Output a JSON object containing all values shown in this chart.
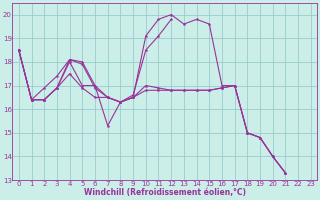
{
  "title": "",
  "xlabel": "Windchill (Refroidissement éolien,°C)",
  "ylabel": "",
  "bg_color": "#cceee8",
  "line_color": "#993399",
  "grid_color": "#99cccc",
  "xlim": [
    -0.5,
    23.5
  ],
  "ylim": [
    13,
    20.5
  ],
  "yticks": [
    13,
    14,
    15,
    16,
    17,
    18,
    19,
    20
  ],
  "xticks": [
    0,
    1,
    2,
    3,
    4,
    5,
    6,
    7,
    8,
    9,
    10,
    11,
    12,
    13,
    14,
    15,
    16,
    17,
    18,
    19,
    20,
    21,
    22,
    23
  ],
  "series": [
    [
      18.5,
      16.4,
      16.4,
      16.9,
      18.1,
      18.0,
      17.0,
      15.3,
      16.3,
      16.5,
      19.1,
      19.8,
      20.0,
      19.6,
      19.8,
      19.6,
      17.0,
      17.0,
      15.0,
      14.8,
      14.0,
      13.3,
      null,
      null
    ],
    [
      18.5,
      16.4,
      16.9,
      17.4,
      18.1,
      17.9,
      16.9,
      16.5,
      16.3,
      16.6,
      18.5,
      19.1,
      19.8,
      null,
      null,
      null,
      null,
      null,
      null,
      null,
      null,
      null,
      null,
      null
    ],
    [
      18.5,
      16.4,
      16.4,
      16.9,
      17.5,
      16.9,
      16.5,
      16.5,
      16.3,
      16.5,
      17.0,
      16.9,
      16.8,
      16.8,
      16.8,
      16.8,
      16.9,
      17.0,
      15.0,
      14.8,
      14.0,
      13.3,
      null,
      null
    ],
    [
      18.5,
      16.4,
      16.4,
      16.9,
      18.0,
      17.0,
      17.0,
      16.5,
      16.3,
      16.5,
      16.8,
      16.8,
      16.8,
      16.8,
      16.8,
      16.8,
      16.9,
      17.0,
      15.0,
      14.8,
      14.0,
      13.3,
      null,
      null
    ]
  ],
  "tick_fontsize": 5.0,
  "xlabel_fontsize": 5.5,
  "line_width": 0.8,
  "marker_size": 2.0
}
